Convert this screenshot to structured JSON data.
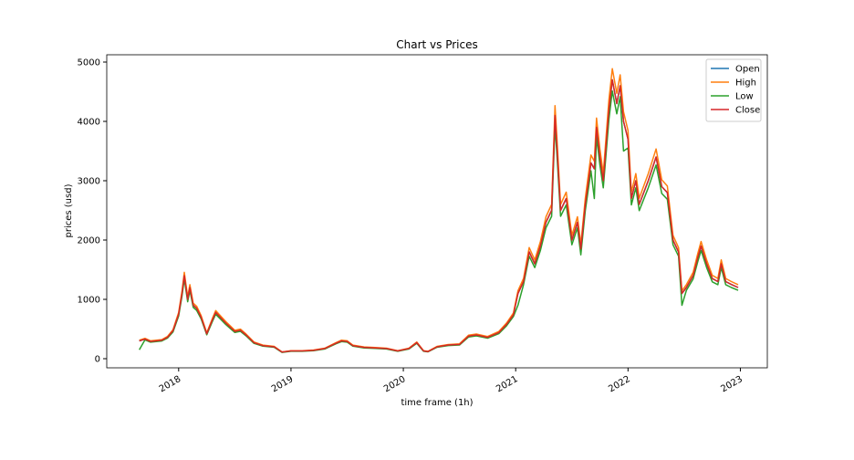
{
  "chart_data": {
    "type": "line",
    "title": "Chart vs Prices",
    "x_label": "time frame (1h)",
    "y_label": "prices (usd)",
    "x": [
      2017.65,
      2017.7,
      2017.75,
      2017.8,
      2017.85,
      2017.9,
      2017.95,
      2018.0,
      2018.03,
      2018.05,
      2018.08,
      2018.1,
      2018.13,
      2018.16,
      2018.2,
      2018.25,
      2018.3,
      2018.33,
      2018.37,
      2018.42,
      2018.5,
      2018.55,
      2018.6,
      2018.67,
      2018.75,
      2018.85,
      2018.92,
      2019.0,
      2019.1,
      2019.2,
      2019.3,
      2019.4,
      2019.45,
      2019.5,
      2019.55,
      2019.65,
      2019.75,
      2019.85,
      2019.95,
      2020.05,
      2020.12,
      2020.18,
      2020.22,
      2020.3,
      2020.4,
      2020.5,
      2020.58,
      2020.65,
      2020.75,
      2020.85,
      2020.92,
      2020.98,
      2021.02,
      2021.07,
      2021.12,
      2021.17,
      2021.22,
      2021.27,
      2021.32,
      2021.35,
      2021.37,
      2021.4,
      2021.45,
      2021.5,
      2021.55,
      2021.58,
      2021.62,
      2021.67,
      2021.7,
      2021.72,
      2021.75,
      2021.78,
      2021.83,
      2021.86,
      2021.9,
      2021.93,
      2021.96,
      2022.0,
      2022.03,
      2022.07,
      2022.1,
      2022.18,
      2022.25,
      2022.3,
      2022.35,
      2022.4,
      2022.45,
      2022.48,
      2022.52,
      2022.58,
      2022.62,
      2022.65,
      2022.7,
      2022.75,
      2022.8,
      2022.83,
      2022.87,
      2022.92,
      2022.98
    ],
    "series": [
      {
        "name": "Open",
        "color": "#1f77b4",
        "values": [
          300,
          330,
          290,
          300,
          310,
          360,
          470,
          750,
          1100,
          1400,
          1000,
          1200,
          900,
          850,
          700,
          420,
          650,
          780,
          700,
          600,
          460,
          480,
          400,
          270,
          220,
          200,
          110,
          130,
          130,
          140,
          170,
          260,
          300,
          290,
          220,
          190,
          180,
          170,
          130,
          170,
          270,
          130,
          120,
          200,
          230,
          240,
          380,
          400,
          360,
          440,
          580,
          740,
          1100,
          1300,
          1800,
          1600,
          1900,
          2300,
          2500,
          4100,
          3500,
          2500,
          2700,
          2000,
          2300,
          1850,
          2600,
          3300,
          3200,
          3900,
          3400,
          3000,
          4200,
          4700,
          4300,
          4600,
          4000,
          3700,
          2700,
          3000,
          2600,
          3000,
          3400,
          2900,
          2800,
          2000,
          1800,
          1100,
          1200,
          1400,
          1700,
          1900,
          1600,
          1350,
          1300,
          1600,
          1300,
          1250,
          1200
        ]
      },
      {
        "name": "High",
        "color": "#ff7f0e",
        "values": [
          312,
          343,
          302,
          312,
          322,
          374,
          489,
          780,
          1144,
          1456,
          1040,
          1248,
          936,
          884,
          728,
          437,
          676,
          811,
          728,
          624,
          478,
          499,
          416,
          281,
          229,
          208,
          114,
          135,
          135,
          146,
          177,
          270,
          312,
          302,
          229,
          198,
          187,
          177,
          135,
          177,
          281,
          135,
          125,
          208,
          239,
          250,
          395,
          416,
          374,
          458,
          603,
          770,
          1144,
          1352,
          1872,
          1664,
          1976,
          2392,
          2600,
          4264,
          3640,
          2600,
          2808,
          2080,
          2392,
          1924,
          2704,
          3432,
          3328,
          4056,
          3536,
          3120,
          4368,
          4888,
          4472,
          4784,
          4160,
          3848,
          2808,
          3120,
          2704,
          3120,
          3536,
          3016,
          2912,
          2080,
          1872,
          1144,
          1248,
          1456,
          1768,
          1976,
          1664,
          1404,
          1352,
          1664,
          1352,
          1300,
          1248
        ]
      },
      {
        "name": "Low",
        "color": "#2ca02c",
        "values": [
          150,
          317,
          278,
          288,
          298,
          346,
          451,
          720,
          1056,
          1344,
          960,
          1152,
          864,
          816,
          672,
          403,
          624,
          749,
          672,
          576,
          442,
          461,
          384,
          259,
          211,
          192,
          106,
          125,
          125,
          134,
          163,
          250,
          288,
          278,
          211,
          182,
          173,
          163,
          125,
          163,
          259,
          125,
          115,
          192,
          221,
          230,
          365,
          384,
          346,
          422,
          557,
          710,
          900,
          1248,
          1728,
          1536,
          1824,
          2208,
          2400,
          3936,
          3360,
          2400,
          2592,
          1920,
          2208,
          1750,
          2496,
          3168,
          2700,
          3744,
          3264,
          2880,
          4032,
          4512,
          4128,
          4416,
          3500,
          3552,
          2592,
          2880,
          2496,
          2880,
          3264,
          2784,
          2688,
          1920,
          1728,
          900,
          1152,
          1344,
          1632,
          1824,
          1536,
          1296,
          1248,
          1536,
          1248,
          1200,
          1152
        ]
      },
      {
        "name": "Close",
        "color": "#d62728",
        "values": [
          300,
          330,
          290,
          300,
          310,
          360,
          470,
          750,
          1100,
          1400,
          1000,
          1200,
          900,
          850,
          700,
          420,
          650,
          780,
          700,
          600,
          460,
          480,
          400,
          270,
          220,
          200,
          110,
          130,
          130,
          140,
          170,
          260,
          300,
          290,
          220,
          190,
          180,
          170,
          130,
          170,
          270,
          130,
          120,
          200,
          230,
          240,
          380,
          400,
          360,
          440,
          580,
          740,
          1100,
          1300,
          1800,
          1600,
          1900,
          2300,
          2500,
          4100,
          3500,
          2500,
          2700,
          2000,
          2300,
          1850,
          2600,
          3300,
          3200,
          3900,
          3400,
          3000,
          4200,
          4700,
          4300,
          4600,
          4000,
          3700,
          2700,
          3000,
          2600,
          3000,
          3400,
          2900,
          2800,
          2000,
          1800,
          1100,
          1200,
          1400,
          1700,
          1900,
          1600,
          1350,
          1300,
          1600,
          1300,
          1250,
          1200
        ]
      }
    ],
    "xlim": [
      2017.36,
      2023.24
    ],
    "xticks": [
      2018,
      2019,
      2020,
      2021,
      2022,
      2023
    ],
    "ylim": [
      -154,
      5123
    ],
    "yticks": [
      0,
      1000,
      2000,
      3000,
      4000,
      5000
    ],
    "legend": "upper right"
  }
}
